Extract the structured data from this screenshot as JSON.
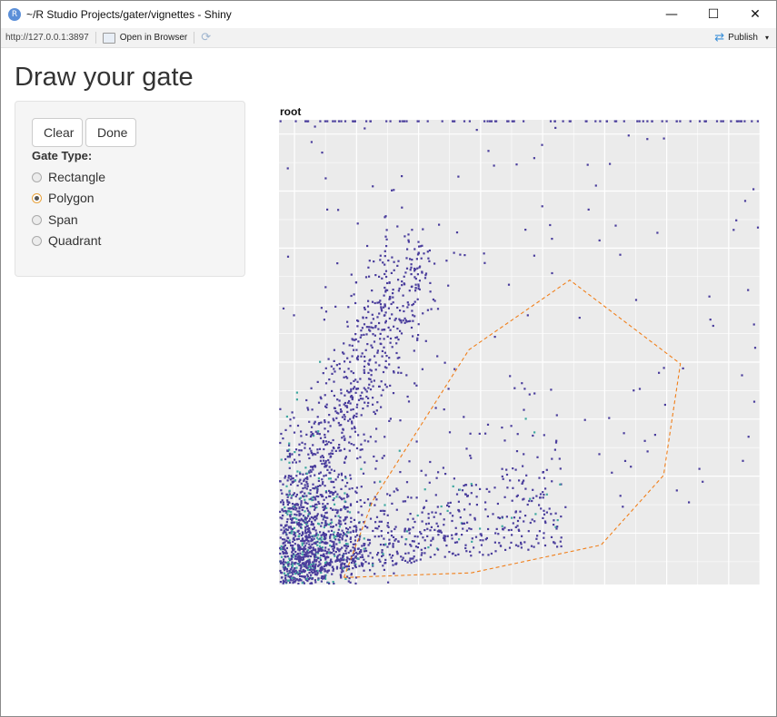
{
  "window": {
    "title": "~/R Studio Projects/gater/vignettes - Shiny",
    "app_icon_letter": "R",
    "minimize": "—",
    "maximize": "☐",
    "close": "✕"
  },
  "toolbar": {
    "url": "http://127.0.0.1:3897",
    "open_in_browser": "Open in Browser",
    "refresh_icon": "⟳",
    "publish_label": "Publish",
    "publish_icon": "⇄",
    "publish_caret": "▾"
  },
  "page": {
    "title": "Draw your gate"
  },
  "sidebar": {
    "clear_label": "Clear",
    "done_label": "Done",
    "gate_type_label": "Gate Type:",
    "gate_types": [
      "Rectangle",
      "Polygon",
      "Span",
      "Quadrant"
    ],
    "selected_gate_type": "Polygon"
  },
  "plot": {
    "title": "root",
    "panel_color": "#ebebeb",
    "grid_color": "#ffffff",
    "point_color": "#4a3d9c",
    "dense_color": "#3fa8a0",
    "gate_color": "#f07f1a",
    "gate_polygon": [
      [
        0.135,
        0.985
      ],
      [
        0.195,
        0.82
      ],
      [
        0.395,
        0.495
      ],
      [
        0.605,
        0.345
      ],
      [
        0.835,
        0.525
      ],
      [
        0.8,
        0.765
      ],
      [
        0.67,
        0.915
      ],
      [
        0.4,
        0.975
      ],
      [
        0.135,
        0.985
      ]
    ]
  }
}
